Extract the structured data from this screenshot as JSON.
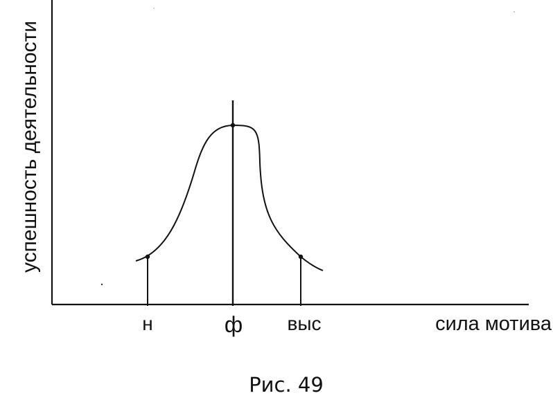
{
  "figure": {
    "y_axis_label": "успешность деятельности",
    "x_axis_label": "сила мотива",
    "ticks": {
      "low": "н",
      "optimal": "ф",
      "high": "выс"
    },
    "caption": "Рис. 49"
  },
  "colors": {
    "ink": "#111111",
    "background": "#ffffff"
  }
}
